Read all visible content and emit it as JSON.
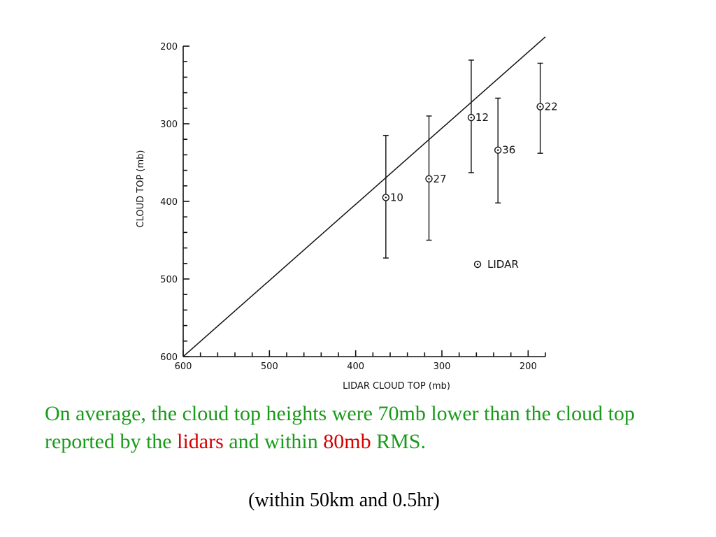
{
  "chart_data": {
    "type": "scatter",
    "xlabel": "LIDAR CLOUD TOP (mb)",
    "ylabel": "CLOUD TOP (mb)",
    "xlim": [
      600,
      180
    ],
    "ylim": [
      600,
      200
    ],
    "x_ticks": [
      600,
      500,
      400,
      300,
      200
    ],
    "y_ticks": [
      200,
      300,
      400,
      500,
      600
    ],
    "axis_direction": "reversed (pressure decreases with altitude)",
    "reference_line": {
      "from": [
        600,
        600
      ],
      "to": [
        180,
        188
      ]
    },
    "points": [
      {
        "label": "10",
        "x": 365,
        "y": 395,
        "err_low": 315,
        "err_high": 473
      },
      {
        "label": "27",
        "x": 315,
        "y": 371,
        "err_low": 290,
        "err_high": 450
      },
      {
        "label": "12",
        "x": 266,
        "y": 292,
        "err_low": 218,
        "err_high": 363
      },
      {
        "label": "36",
        "x": 235,
        "y": 334,
        "err_low": 267,
        "err_high": 402
      },
      {
        "label": "22",
        "x": 186,
        "y": 278,
        "err_low": 222,
        "err_high": 338
      }
    ],
    "legend": {
      "entries": [
        "LIDAR"
      ],
      "placement": "lower-right"
    }
  },
  "caption": {
    "part1": "On average, the cloud top heights were 70mb lower than the cloud top reported by the ",
    "highlight1": "lidars",
    "part2": " and within ",
    "highlight2": "80mb",
    "part3": " RMS."
  },
  "note": "(within 50km and 0.5hr)",
  "colors": {
    "caption": "#1a9a1a",
    "highlight": "#d40000"
  }
}
